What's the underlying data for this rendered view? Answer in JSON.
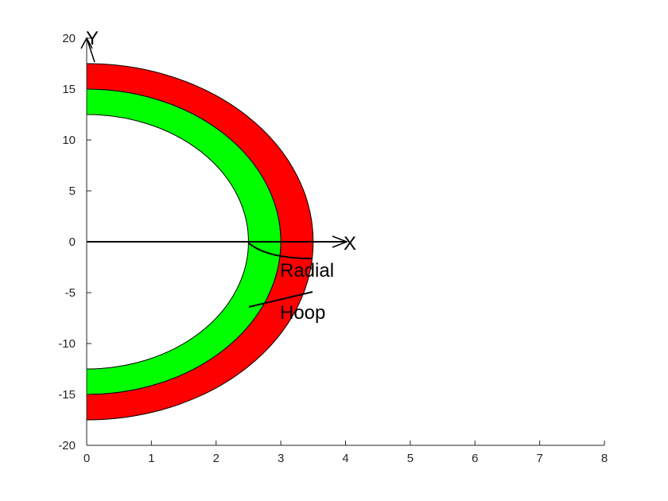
{
  "chart_data": {
    "type": "area",
    "title": "",
    "xlabel": "",
    "ylabel": "",
    "xlim": [
      0,
      8
    ],
    "ylim": [
      -20,
      20
    ],
    "x_ticks": [
      "0",
      "1",
      "2",
      "3",
      "4",
      "5",
      "6",
      "7",
      "8"
    ],
    "y_ticks": [
      "20",
      "15",
      "10",
      "5",
      "0",
      "-5",
      "-10",
      "-15",
      "-20"
    ],
    "grid": false,
    "rings": [
      {
        "semi_axis_x_inner": 2.5,
        "semi_axis_y_inner": 12.5,
        "semi_axis_x_outer": 3.0,
        "semi_axis_y_outer": 15.0,
        "color": "#00ff00"
      },
      {
        "semi_axis_x_inner": 3.0,
        "semi_axis_y_inner": 15.0,
        "semi_axis_x_outer": 3.5,
        "semi_axis_y_outer": 17.5,
        "color": "#ff0000"
      }
    ],
    "annotations": [
      {
        "text": "Y",
        "kind": "axis-arrow"
      },
      {
        "text": "X",
        "kind": "axis-arrow"
      },
      {
        "text": "Radial",
        "kind": "leader-label"
      },
      {
        "text": "Hoop",
        "kind": "leader-label"
      }
    ]
  }
}
